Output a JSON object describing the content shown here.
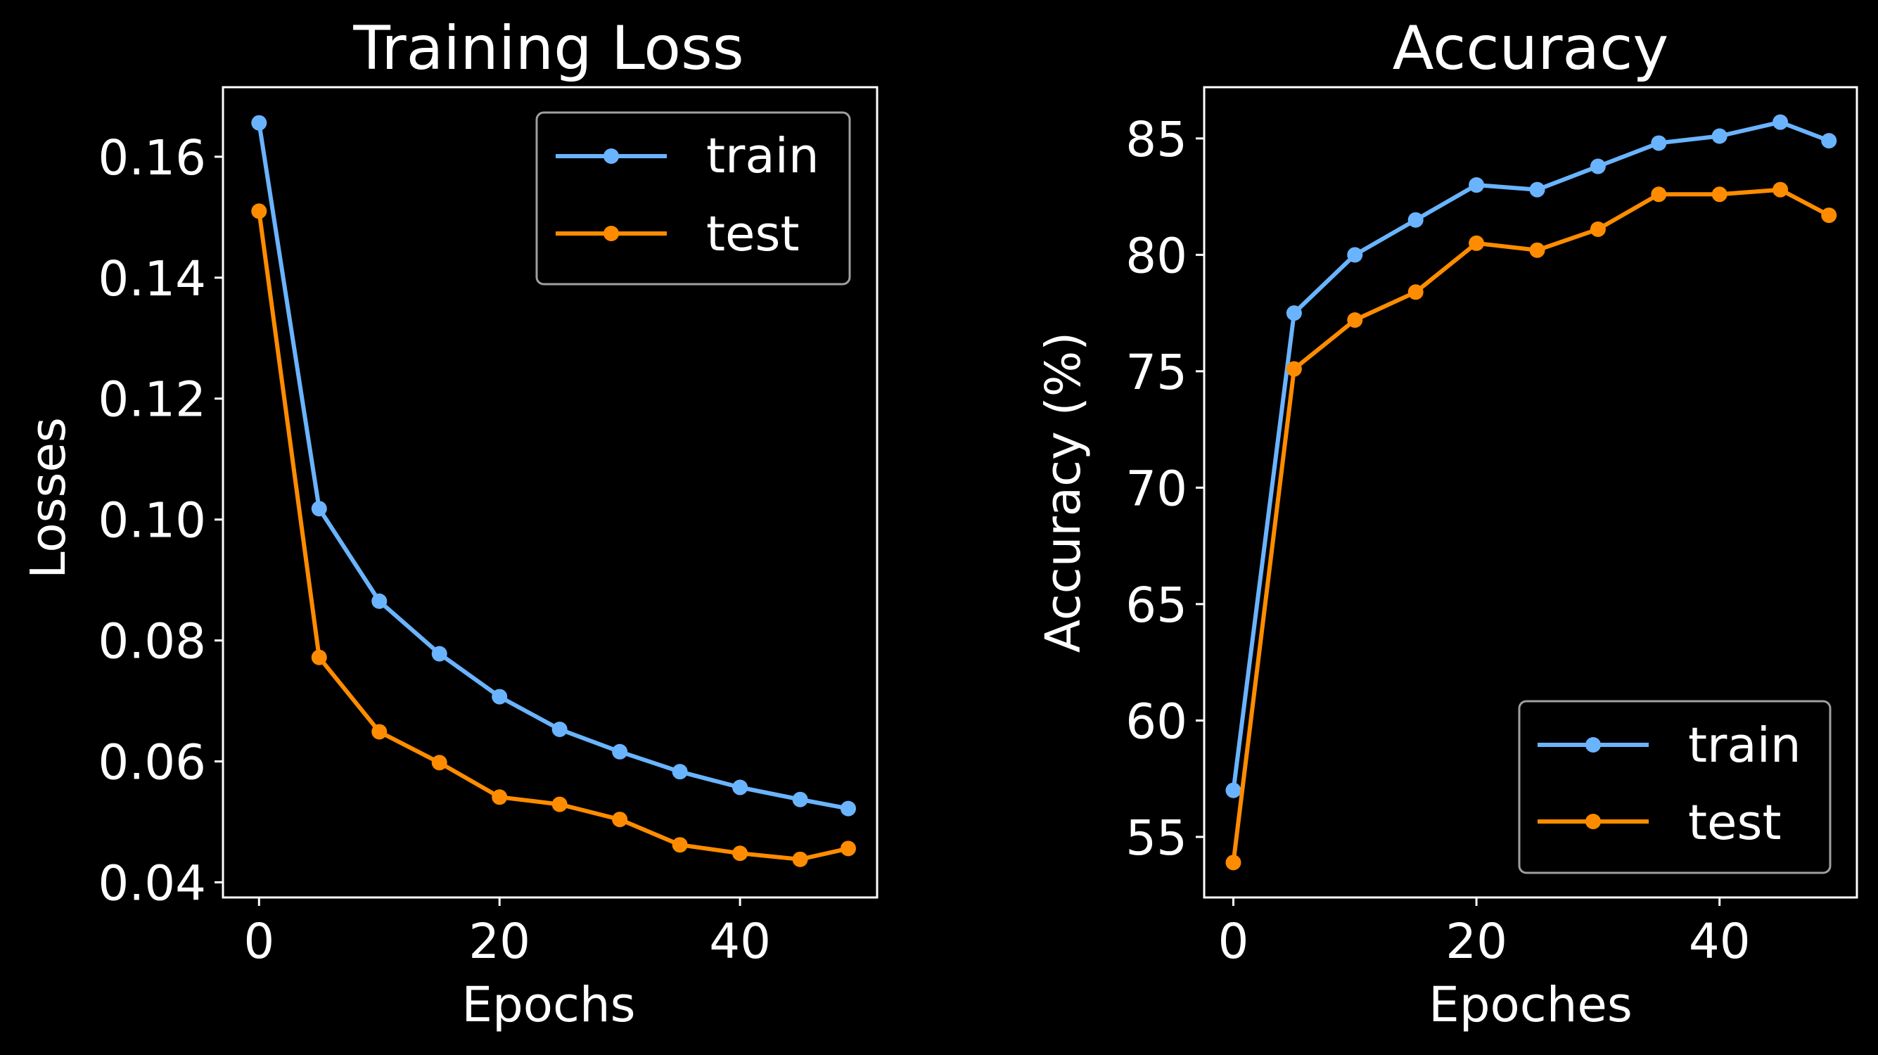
{
  "chart_data": [
    {
      "type": "line",
      "title": "Training Loss",
      "xlabel": "Epochs",
      "ylabel": "Losses",
      "xlim": [
        -3.0,
        51.4
      ],
      "ylim": [
        0.0375,
        0.1715
      ],
      "xticks": [
        0,
        20,
        40
      ],
      "xtick_labels": [
        "0",
        "20",
        "40"
      ],
      "yticks": [
        0.04,
        0.06,
        0.08,
        0.1,
        0.12,
        0.14,
        0.16
      ],
      "ytick_labels": [
        "0.04",
        "0.06",
        "0.08",
        "0.10",
        "0.12",
        "0.14",
        "0.16"
      ],
      "legend_position": "top-right",
      "x": [
        0,
        5,
        10,
        15,
        20,
        25,
        30,
        35,
        40,
        45,
        49
      ],
      "series": [
        {
          "name": "train",
          "color": "#6ab4ff",
          "values": [
            0.1656,
            0.1018,
            0.0865,
            0.0778,
            0.0707,
            0.0653,
            0.0616,
            0.0583,
            0.0557,
            0.0537,
            0.0522
          ]
        },
        {
          "name": "test",
          "color": "#ff8c00",
          "values": [
            0.151,
            0.0772,
            0.0649,
            0.0598,
            0.0541,
            0.0529,
            0.0504,
            0.0462,
            0.0448,
            0.0438,
            0.0456
          ]
        }
      ]
    },
    {
      "type": "line",
      "title": "Accuracy",
      "xlabel": "Epoches",
      "ylabel": "Accuracy (%)",
      "xlim": [
        -2.4,
        51.3
      ],
      "ylim": [
        52.4,
        87.2
      ],
      "xticks": [
        0,
        20,
        40
      ],
      "xtick_labels": [
        "0",
        "20",
        "40"
      ],
      "yticks": [
        55,
        60,
        65,
        70,
        75,
        80,
        85
      ],
      "ytick_labels": [
        "55",
        "60",
        "65",
        "70",
        "75",
        "80",
        "85"
      ],
      "legend_position": "bottom-right",
      "x": [
        0,
        5,
        10,
        15,
        20,
        25,
        30,
        35,
        40,
        45,
        49
      ],
      "series": [
        {
          "name": "train",
          "color": "#6ab4ff",
          "values": [
            57.0,
            77.5,
            80.0,
            81.5,
            83.0,
            82.8,
            83.8,
            84.8,
            85.1,
            85.7,
            84.9
          ]
        },
        {
          "name": "test",
          "color": "#ff8c00",
          "values": [
            53.9,
            75.1,
            77.2,
            78.4,
            80.5,
            80.2,
            81.1,
            82.6,
            82.6,
            82.8,
            81.7
          ]
        }
      ]
    }
  ]
}
